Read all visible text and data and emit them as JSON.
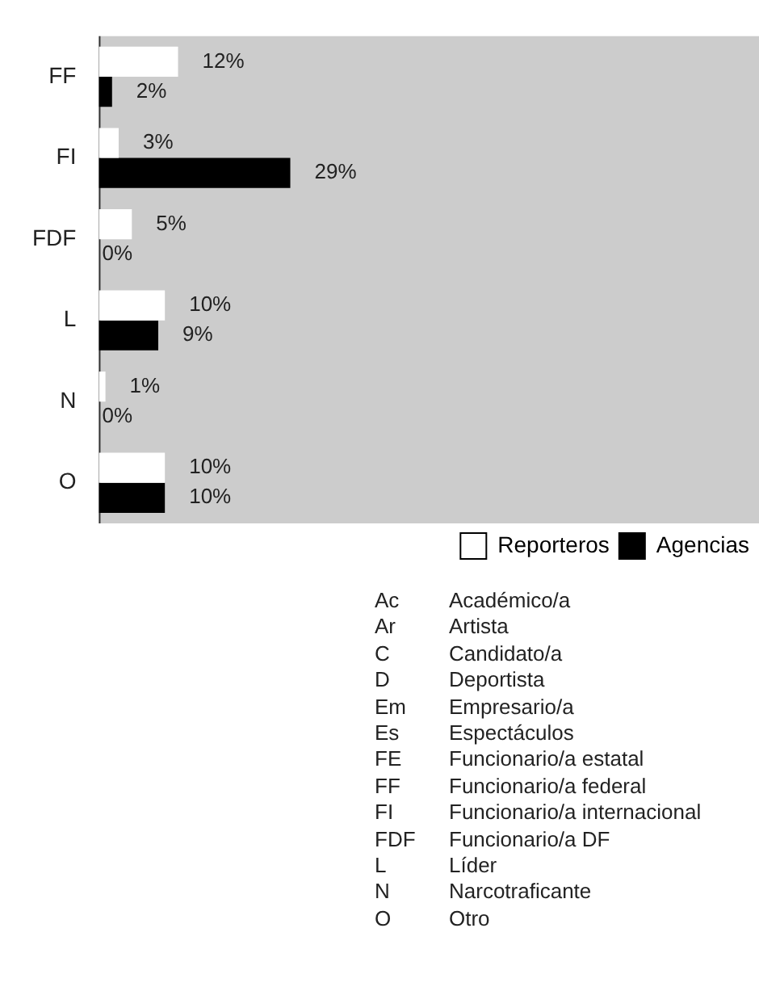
{
  "chart_data": {
    "type": "bar",
    "orientation": "horizontal",
    "categories": [
      "FF",
      "FI",
      "FDF",
      "L",
      "N",
      "O"
    ],
    "series": [
      {
        "name": "Reporteros",
        "color": "#ffffff",
        "values": [
          12,
          3,
          5,
          10,
          1,
          10
        ],
        "value_labels": [
          "12%",
          "3%",
          "5%",
          "10%",
          "1%",
          "10%"
        ]
      },
      {
        "name": "Agencias",
        "color": "#000000",
        "values": [
          2,
          29,
          0,
          9,
          0,
          10
        ],
        "value_labels": [
          "2%",
          "29%",
          "0%",
          "9%",
          "0%",
          "10%"
        ]
      }
    ],
    "xlim": [
      0,
      100
    ],
    "tick_labels": "y",
    "grid": false,
    "legend": "bottom right",
    "annotations": [
      "Ac Académico/a",
      "Ar Artista",
      "C Candidato/a",
      "D Deportista",
      "Em Empresario/a",
      "Es Espectáculos",
      "FE Funcionario/a estatal",
      "FF Funcionario/a federal",
      "FI Funcionario/a internacional",
      "FDF Funcionario/a DF",
      "L Líder",
      "N Narcotraficante",
      "O Otro"
    ]
  }
}
